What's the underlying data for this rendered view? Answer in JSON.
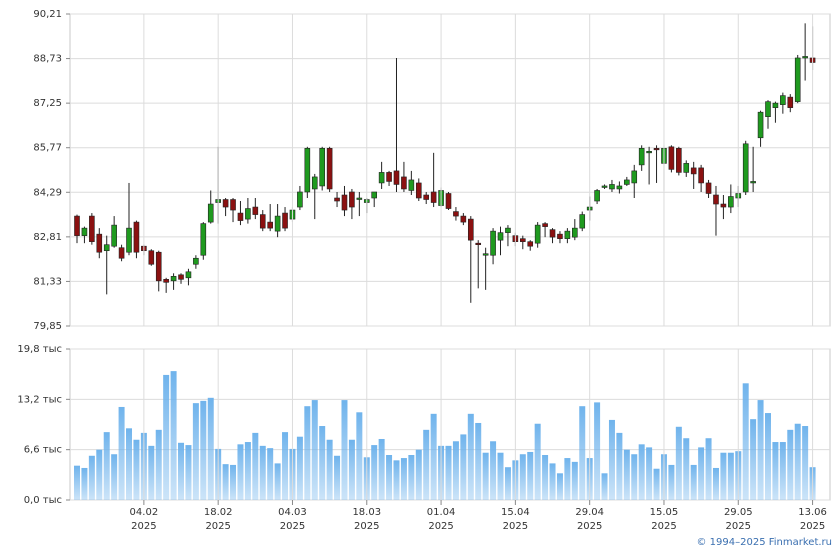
{
  "chart_data": [
    {
      "type": "candlestick",
      "open": [
        83.5,
        82.85,
        83.5,
        82.9,
        82.35,
        82.5,
        82.45,
        82.3,
        83.3,
        82.5,
        82.35,
        82.3,
        81.4,
        81.35,
        81.55,
        81.45,
        81.9,
        82.2,
        83.3,
        83.95,
        84.05,
        84.05,
        83.6,
        83.4,
        83.8,
        83.55,
        83.3,
        83.0,
        83.6,
        83.4,
        83.8,
        84.3,
        84.4,
        84.5,
        85.75,
        84.1,
        84.2,
        84.3,
        84.05,
        83.95,
        84.1,
        84.6,
        84.95,
        85.0,
        84.8,
        84.35,
        84.6,
        84.2,
        84.3,
        83.85,
        84.25,
        83.65,
        83.5,
        83.4,
        82.6,
        82.2,
        82.2,
        82.7,
        82.95,
        82.85,
        82.75,
        82.65,
        82.6,
        83.25,
        83.05,
        82.9,
        82.75,
        82.8,
        83.1,
        83.7,
        84.0,
        84.45,
        84.4,
        84.4,
        84.55,
        84.6,
        85.2,
        85.6,
        85.75,
        85.25,
        85.8,
        85.75,
        84.95,
        85.1,
        85.1,
        84.6,
        84.2,
        83.9,
        83.8,
        84.1,
        84.3,
        84.6,
        86.1,
        86.8,
        87.1,
        87.2,
        87.45,
        87.3,
        88.75,
        88.75
      ],
      "high": [
        83.55,
        83.15,
        83.6,
        83.1,
        82.85,
        83.5,
        82.55,
        84.6,
        83.35,
        82.55,
        82.4,
        82.35,
        81.45,
        81.6,
        81.6,
        81.75,
        82.2,
        83.3,
        84.35,
        85.8,
        84.1,
        84.1,
        84.0,
        84.1,
        84.1,
        83.7,
        83.9,
        83.9,
        83.8,
        83.8,
        84.5,
        85.8,
        84.9,
        85.8,
        85.8,
        84.3,
        84.5,
        84.4,
        84.3,
        84.1,
        84.3,
        85.3,
        85.0,
        88.75,
        85.3,
        85.0,
        84.75,
        84.3,
        85.6,
        84.45,
        84.3,
        83.8,
        83.6,
        83.5,
        82.7,
        82.45,
        83.1,
        83.15,
        83.2,
        82.95,
        82.85,
        82.7,
        83.3,
        83.3,
        83.1,
        83.0,
        83.1,
        83.4,
        83.65,
        84.15,
        84.4,
        84.55,
        84.7,
        84.65,
        84.8,
        85.2,
        85.85,
        85.8,
        85.85,
        85.85,
        85.85,
        85.8,
        85.35,
        85.3,
        85.2,
        84.7,
        84.5,
        84.2,
        84.55,
        84.5,
        86.0,
        85.8,
        87.0,
        87.35,
        87.3,
        87.6,
        87.55,
        88.85,
        89.9,
        89.8
      ],
      "low": [
        82.6,
        82.6,
        82.55,
        82.1,
        80.9,
        82.45,
        82.0,
        82.2,
        82.1,
        82.2,
        81.85,
        81.0,
        80.95,
        81.05,
        81.25,
        81.2,
        81.75,
        82.05,
        83.25,
        83.25,
        83.5,
        83.3,
        83.2,
        83.25,
        83.4,
        83.0,
        83.0,
        82.8,
        83.0,
        83.3,
        83.7,
        84.1,
        83.4,
        84.35,
        84.3,
        83.8,
        83.5,
        83.4,
        83.5,
        83.6,
        83.8,
        84.4,
        84.5,
        84.3,
        84.3,
        84.2,
        84.0,
        83.9,
        83.8,
        83.8,
        83.7,
        83.35,
        83.2,
        80.62,
        81.1,
        81.05,
        81.9,
        82.2,
        82.5,
        82.5,
        82.4,
        82.35,
        82.45,
        82.8,
        82.6,
        82.6,
        82.6,
        82.7,
        83.0,
        83.35,
        83.9,
        84.4,
        84.3,
        84.25,
        84.5,
        84.1,
        85.0,
        84.55,
        84.6,
        84.35,
        84.95,
        84.85,
        84.8,
        84.4,
        84.3,
        84.1,
        82.85,
        83.4,
        83.6,
        83.8,
        84.2,
        84.3,
        85.8,
        86.4,
        86.6,
        86.9,
        86.95,
        87.25,
        88.0,
        88.35
      ],
      "close": [
        82.85,
        83.1,
        82.65,
        82.3,
        82.55,
        83.2,
        82.1,
        83.1,
        82.3,
        82.35,
        81.9,
        81.35,
        81.3,
        81.5,
        81.4,
        81.65,
        82.1,
        83.25,
        83.9,
        84.05,
        83.8,
        83.7,
        83.35,
        83.75,
        83.55,
        83.1,
        83.1,
        83.5,
        83.1,
        83.7,
        84.3,
        85.75,
        84.8,
        85.75,
        84.4,
        84.0,
        83.7,
        83.8,
        84.1,
        84.05,
        84.3,
        84.95,
        84.65,
        84.55,
        84.4,
        84.7,
        84.1,
        84.05,
        83.95,
        84.35,
        83.75,
        83.5,
        83.3,
        82.7,
        82.55,
        82.25,
        83.0,
        82.95,
        83.1,
        82.65,
        82.65,
        82.5,
        83.2,
        83.15,
        82.8,
        82.75,
        83.0,
        83.1,
        83.55,
        83.8,
        84.35,
        84.5,
        84.55,
        84.5,
        84.7,
        85.0,
        85.75,
        85.65,
        85.7,
        85.75,
        85.05,
        84.95,
        85.25,
        84.9,
        84.6,
        84.25,
        83.9,
        83.8,
        84.15,
        84.25,
        85.9,
        84.65,
        86.95,
        87.3,
        87.25,
        87.5,
        87.1,
        88.75,
        88.8,
        88.6
      ],
      "up_color": "#1f9a1f",
      "down_color": "#8b1111",
      "ylim": [
        79.85,
        90.21
      ],
      "yticks": [
        {
          "value": 90.21,
          "label": "90,21"
        },
        {
          "value": 88.73,
          "label": "88,73"
        },
        {
          "value": 87.25,
          "label": "87,25"
        },
        {
          "value": 85.77,
          "label": "85,77"
        },
        {
          "value": 84.29,
          "label": "84,29"
        },
        {
          "value": 82.81,
          "label": "82,81"
        },
        {
          "value": 81.33,
          "label": "81,33"
        },
        {
          "value": 79.85,
          "label": "79,85"
        }
      ],
      "grid": true
    },
    {
      "type": "bar",
      "categories": [
        null,
        null,
        null,
        null,
        null,
        null,
        null,
        null,
        null,
        [
          "04.02",
          "2025"
        ],
        null,
        null,
        null,
        null,
        null,
        null,
        null,
        null,
        null,
        [
          "18.02",
          "2025"
        ],
        null,
        null,
        null,
        null,
        null,
        null,
        null,
        null,
        null,
        [
          "04.03",
          "2025"
        ],
        null,
        null,
        null,
        null,
        null,
        null,
        null,
        null,
        null,
        [
          "18.03",
          "2025"
        ],
        null,
        null,
        null,
        null,
        null,
        null,
        null,
        null,
        null,
        [
          "01.04",
          "2025"
        ],
        null,
        null,
        null,
        null,
        null,
        null,
        null,
        null,
        null,
        [
          "15.04",
          "2025"
        ],
        null,
        null,
        null,
        null,
        null,
        null,
        null,
        null,
        null,
        [
          "29.04",
          "2025"
        ],
        null,
        null,
        null,
        null,
        null,
        null,
        null,
        null,
        null,
        [
          "15.05",
          "2025"
        ],
        null,
        null,
        null,
        null,
        null,
        null,
        null,
        null,
        null,
        [
          "29.05",
          "2025"
        ],
        null,
        null,
        null,
        null,
        null,
        null,
        null,
        null,
        null,
        [
          "13.06",
          "2025"
        ]
      ],
      "values": [
        4.5,
        4.2,
        5.8,
        6.6,
        8.9,
        6.0,
        12.2,
        9.4,
        7.9,
        8.8,
        7.1,
        9.2,
        16.4,
        16.9,
        7.5,
        7.2,
        12.7,
        13.0,
        13.4,
        6.7,
        4.7,
        4.6,
        7.3,
        7.6,
        8.8,
        7.1,
        6.8,
        4.8,
        8.9,
        6.7,
        8.3,
        12.3,
        13.1,
        9.7,
        7.9,
        5.8,
        13.1,
        7.9,
        11.5,
        5.6,
        7.2,
        8.0,
        5.9,
        5.2,
        5.5,
        5.9,
        6.6,
        9.2,
        11.3,
        7.1,
        7.1,
        7.7,
        8.6,
        11.3,
        10.1,
        6.2,
        7.7,
        6.2,
        4.3,
        5.2,
        6.0,
        6.3,
        10.0,
        5.9,
        4.8,
        3.5,
        5.5,
        5.0,
        12.3,
        5.5,
        12.8,
        3.5,
        10.5,
        8.8,
        6.6,
        6.0,
        7.3,
        6.9,
        4.1,
        6.0,
        4.6,
        9.6,
        8.1,
        4.6,
        6.9,
        8.1,
        4.2,
        6.2,
        6.2,
        6.4,
        15.3,
        10.6,
        13.1,
        11.4,
        7.6,
        7.6,
        9.2,
        10.0,
        9.7,
        4.3
      ],
      "color": "#6fb3ec",
      "ylim": [
        0,
        19.8
      ],
      "yticks": [
        {
          "value": 19.8,
          "label": "19,8 тыс"
        },
        {
          "value": 13.2,
          "label": "13,2 тыс"
        },
        {
          "value": 6.6,
          "label": "6,6 тыс"
        },
        {
          "value": 0,
          "label": "0,0 тыс"
        }
      ],
      "grid": true
    }
  ],
  "copyright": "© 1994–2025 Finmarket.ru"
}
